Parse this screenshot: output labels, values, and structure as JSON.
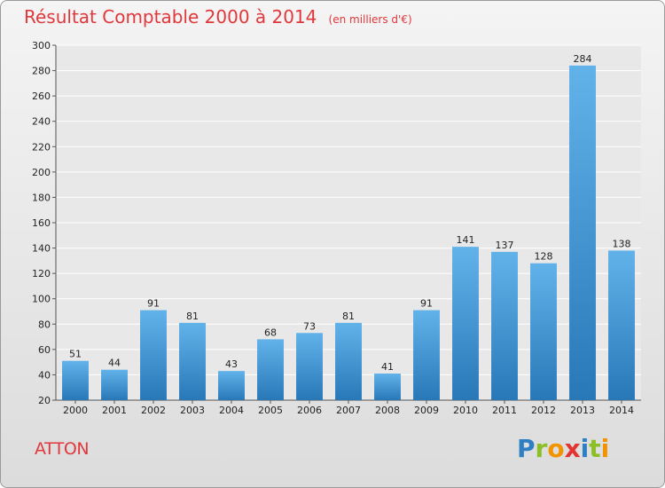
{
  "header": {
    "title": "Résultat Comptable 2000 à 2014",
    "unit": "(en milliers d'€)"
  },
  "footer": {
    "commune": "ATTON",
    "logo_letters": [
      "P",
      "r",
      "o",
      "x",
      "i",
      "t",
      "i"
    ],
    "logo_colors": [
      "#2f7fc4",
      "#8cbf26",
      "#f29400",
      "#e3342f",
      "#2f7fc4",
      "#8cbf26",
      "#f29400"
    ]
  },
  "colors": {
    "accent_text": "#e0383c",
    "bar_top": "#62b2ea",
    "bar_bottom": "#2878b8"
  },
  "chart_data": {
    "type": "bar",
    "title": "Résultat Comptable 2000 à 2014",
    "subtitle": "(en milliers d'€)",
    "categories": [
      "2000",
      "2001",
      "2002",
      "2003",
      "2004",
      "2005",
      "2006",
      "2007",
      "2008",
      "2009",
      "2010",
      "2011",
      "2012",
      "2013",
      "2014"
    ],
    "values": [
      51,
      44,
      91,
      81,
      43,
      68,
      73,
      81,
      41,
      91,
      141,
      137,
      128,
      284,
      138
    ],
    "ylim": [
      20,
      300
    ],
    "yticks": [
      20,
      40,
      60,
      80,
      100,
      120,
      140,
      160,
      180,
      200,
      220,
      240,
      260,
      280,
      300
    ],
    "grid": true,
    "xlabel": "",
    "ylabel": ""
  }
}
